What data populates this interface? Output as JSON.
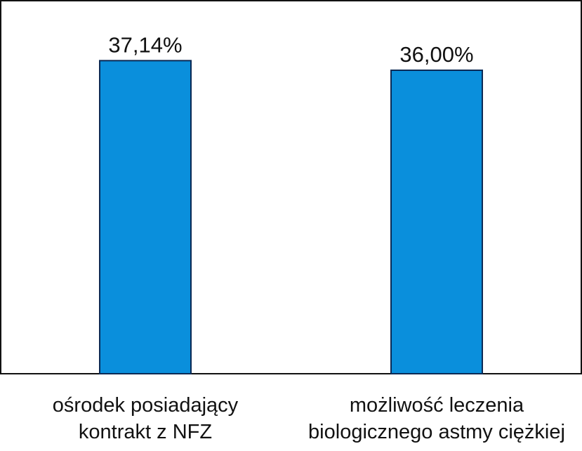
{
  "chart_data": {
    "type": "bar",
    "categories": [
      [
        "ośrodek posiadający",
        "kontrakt z NFZ"
      ],
      [
        "możliwość leczenia",
        "biologicznego astmy ciężkiej"
      ]
    ],
    "values": [
      37.14,
      36.0
    ],
    "data_labels": [
      "37,14%",
      "36,00%"
    ],
    "title": "",
    "xlabel": "",
    "ylabel": "",
    "y_axis_visible": false,
    "grid": false,
    "legend": "none",
    "bar_color": "#0a8fdc",
    "bar_border_color": "#0b2a55"
  }
}
